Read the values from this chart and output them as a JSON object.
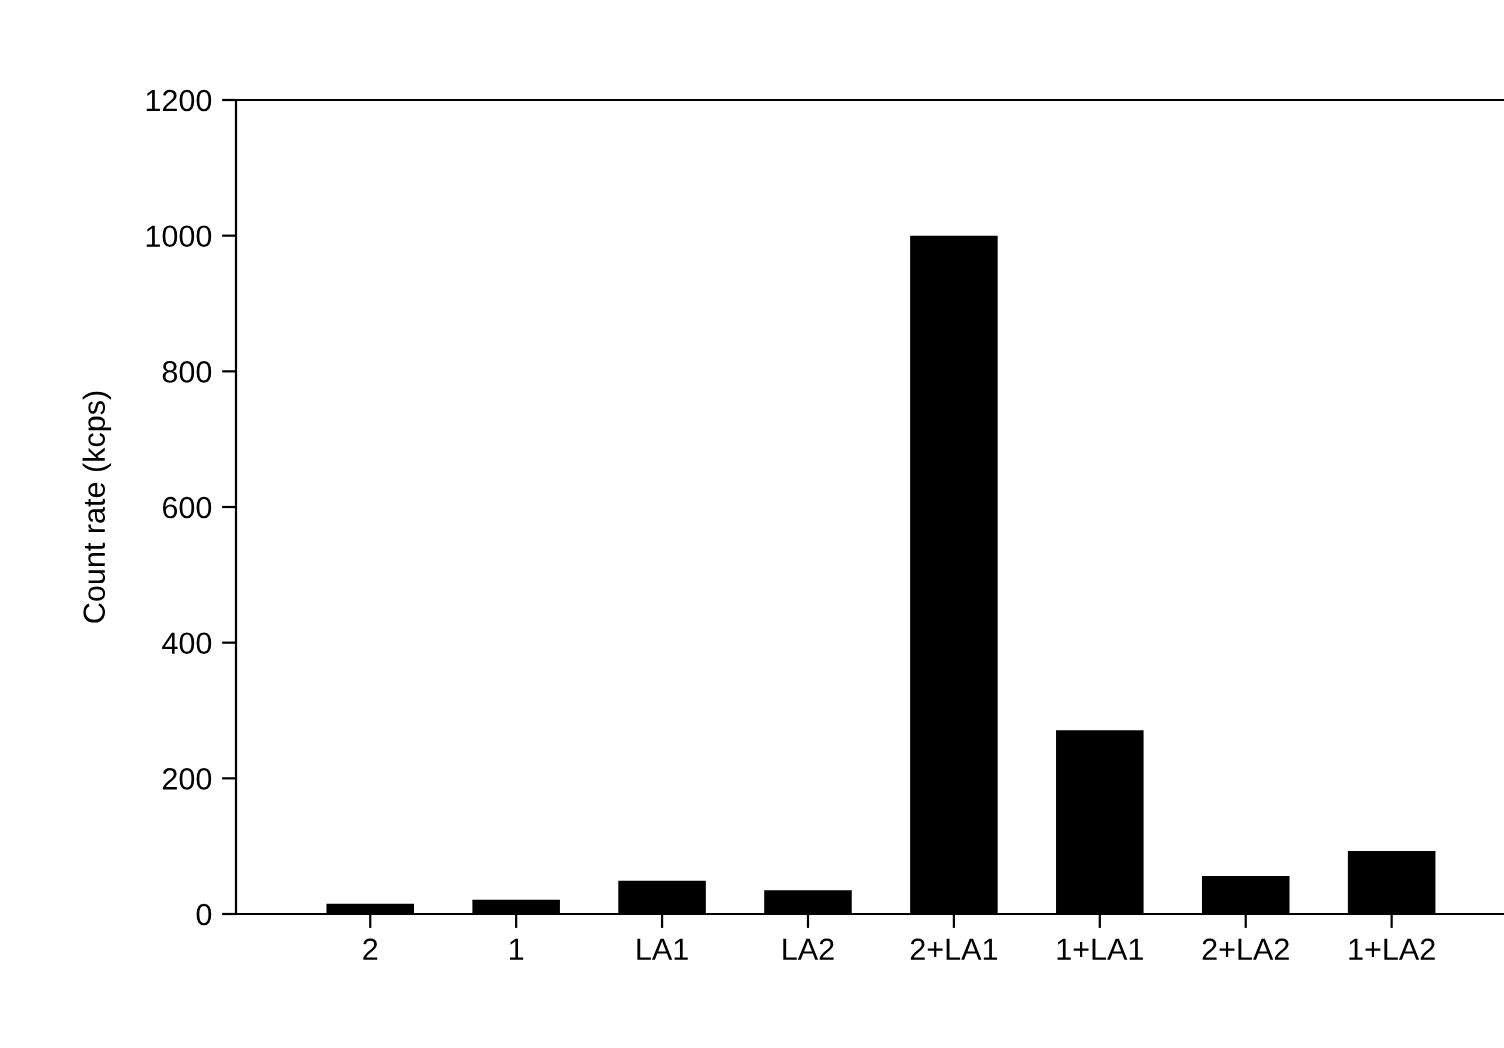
{
  "chart_data": {
    "type": "bar",
    "ylabel": "Count rate (kcps)",
    "categories": [
      "2",
      "1",
      "LA1",
      "LA2",
      "2+LA1",
      "1+LA1",
      "2+LA2",
      "1+LA2"
    ],
    "values": [
      15,
      21,
      49,
      35,
      1000,
      271,
      56,
      93
    ],
    "color": "#000000",
    "ylim": [
      0,
      1200
    ],
    "yticks": [
      0,
      200,
      400,
      600,
      800,
      1000,
      1200
    ],
    "grid": false,
    "legend": false
  }
}
